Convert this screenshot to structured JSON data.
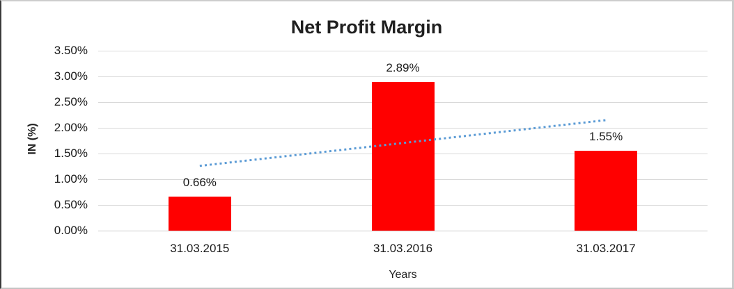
{
  "chart_data": {
    "type": "bar",
    "title": "Net Profit Margin",
    "xlabel": "Years",
    "ylabel": "IN (%)",
    "categories": [
      "31.03.2015",
      "31.03.2016",
      "31.03.2017"
    ],
    "values": [
      0.66,
      2.89,
      1.55
    ],
    "data_labels": [
      "0.66%",
      "2.89%",
      "1.55%"
    ],
    "ylim": [
      0,
      3.5
    ],
    "ytick_step": 0.5,
    "ytick_labels": [
      "3.50%",
      "3.00%",
      "2.50%",
      "2.00%",
      "1.50%",
      "1.00%",
      "0.50%",
      "0.00%"
    ],
    "grid": true,
    "legend": "none",
    "bar_color": "#ff0000",
    "gridline_color": "#d9d9d9",
    "trendline": {
      "type": "linear",
      "style": "dotted",
      "color": "#5b9bd5",
      "start_value": 1.26,
      "end_value": 2.15
    }
  }
}
